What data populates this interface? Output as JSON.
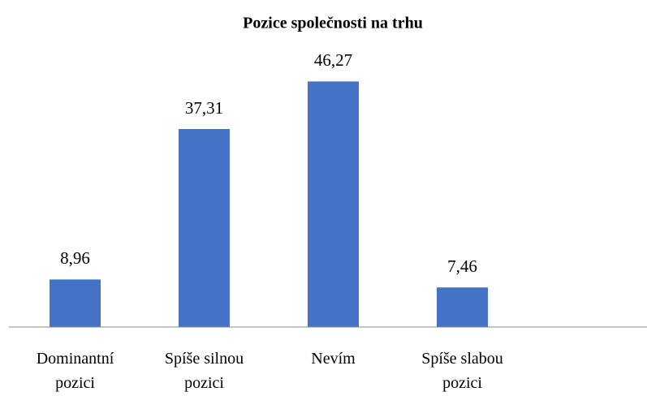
{
  "chart_data": {
    "type": "bar",
    "title": "Pozice společnosti na trhu",
    "categories": [
      "Dominantní pozici",
      "Spíše silnou pozici",
      "Nevím",
      "Spíše slabou pozici",
      null
    ],
    "values": [
      8.96,
      37.31,
      46.27,
      7.46,
      null
    ],
    "value_labels": [
      "8,96",
      "37,31",
      "46,27",
      "7,46",
      null
    ],
    "color": "#4472c4",
    "ylim": [
      0,
      50
    ]
  }
}
